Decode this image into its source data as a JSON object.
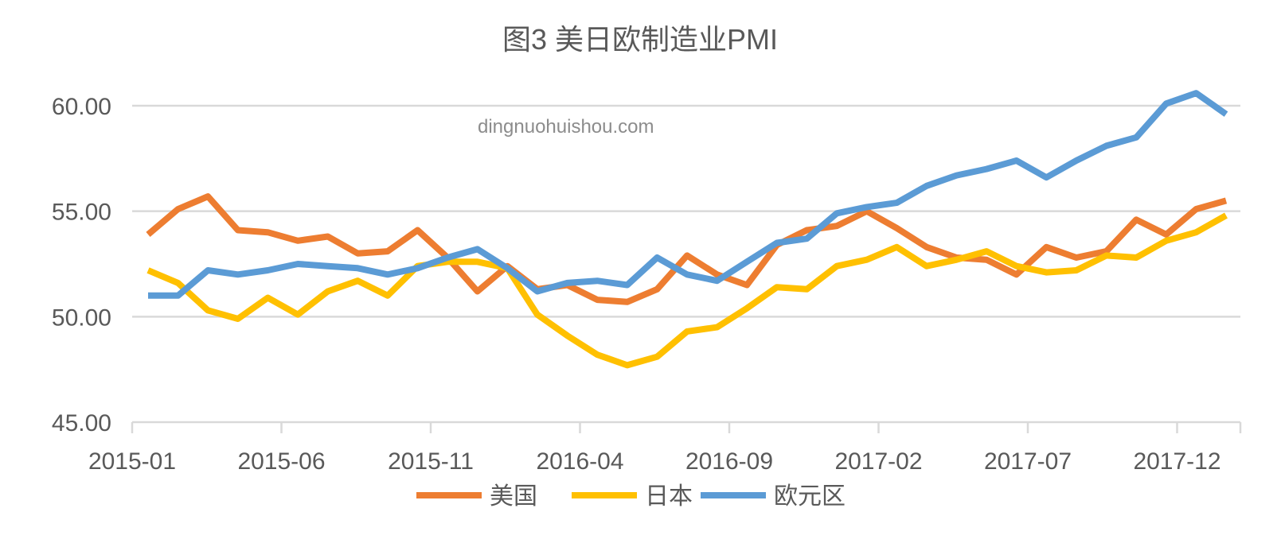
{
  "chart_data": {
    "type": "line",
    "title": "图3 美日欧制造业PMI",
    "watermark": "dingnuohuishou.com",
    "xlabel": "",
    "ylabel": "",
    "ylim": [
      45,
      60
    ],
    "yticks": [
      "60.00",
      "55.00",
      "50.00",
      "45.00"
    ],
    "ytick_values": [
      60,
      55,
      50,
      45
    ],
    "grid": true,
    "legend": "bottom",
    "xtick_labels": [
      "2015-01",
      "2015-06",
      "2015-11",
      "2016-04",
      "2016-09",
      "2017-02",
      "2017-07",
      "2017-12"
    ],
    "xtick_indices": [
      0,
      5,
      10,
      15,
      20,
      25,
      30,
      35
    ],
    "categories": [
      "2015-01",
      "2015-02",
      "2015-03",
      "2015-04",
      "2015-05",
      "2015-06",
      "2015-07",
      "2015-08",
      "2015-09",
      "2015-10",
      "2015-11",
      "2015-12",
      "2016-01",
      "2016-02",
      "2016-03",
      "2016-04",
      "2016-05",
      "2016-06",
      "2016-07",
      "2016-08",
      "2016-09",
      "2016-10",
      "2016-11",
      "2016-12",
      "2017-01",
      "2017-02",
      "2017-03",
      "2017-04",
      "2017-05",
      "2017-06",
      "2017-07",
      "2017-08",
      "2017-09",
      "2017-10",
      "2017-11",
      "2017-12",
      "2018-01"
    ],
    "series": [
      {
        "name": "美国",
        "color": "#ed7d31",
        "values": [
          53.9,
          55.1,
          55.7,
          54.1,
          54.0,
          53.6,
          53.8,
          53.0,
          53.1,
          54.1,
          52.8,
          51.2,
          52.4,
          51.3,
          51.5,
          50.8,
          50.7,
          51.3,
          52.9,
          52.0,
          51.5,
          53.4,
          54.1,
          54.3,
          55.0,
          54.2,
          53.3,
          52.8,
          52.7,
          52.0,
          53.3,
          52.8,
          53.1,
          54.6,
          53.9,
          55.1,
          55.5
        ]
      },
      {
        "name": "日本",
        "color": "#ffc000",
        "values": [
          52.2,
          51.6,
          50.3,
          49.9,
          50.9,
          50.1,
          51.2,
          51.7,
          51.0,
          52.4,
          52.6,
          52.6,
          52.3,
          50.1,
          49.1,
          48.2,
          47.7,
          48.1,
          49.3,
          49.5,
          50.4,
          51.4,
          51.3,
          52.4,
          52.7,
          53.3,
          52.4,
          52.7,
          53.1,
          52.4,
          52.1,
          52.2,
          52.9,
          52.8,
          53.6,
          54.0,
          54.8
        ]
      },
      {
        "name": "欧元区",
        "color": "#5b9bd5",
        "values": [
          51.0,
          51.0,
          52.2,
          52.0,
          52.2,
          52.5,
          52.4,
          52.3,
          52.0,
          52.3,
          52.8,
          53.2,
          52.3,
          51.2,
          51.6,
          51.7,
          51.5,
          52.8,
          52.0,
          51.7,
          52.6,
          53.5,
          53.7,
          54.9,
          55.2,
          55.4,
          56.2,
          56.7,
          57.0,
          57.4,
          56.6,
          57.4,
          58.1,
          58.5,
          60.1,
          60.6,
          59.6
        ]
      }
    ]
  }
}
